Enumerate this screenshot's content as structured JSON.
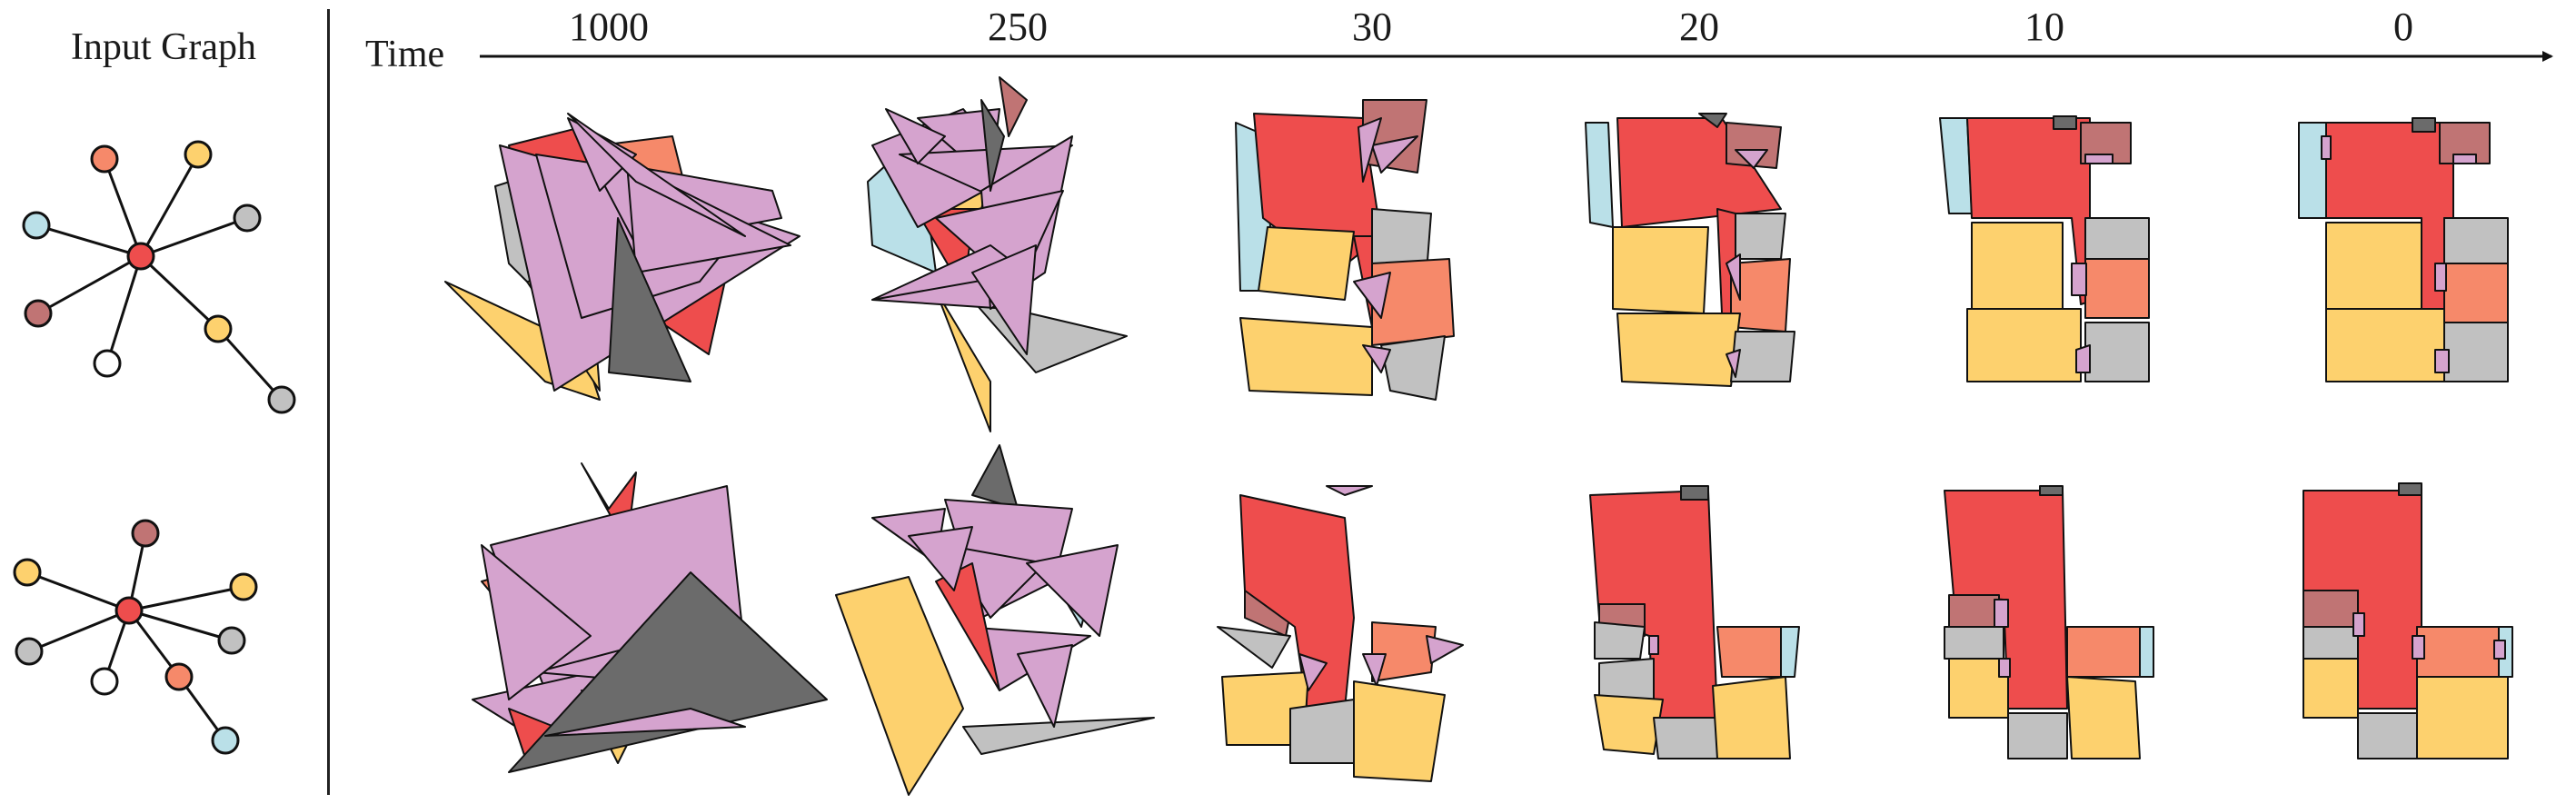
{
  "labels": {
    "input_graph": "Input Graph",
    "time": "Time"
  },
  "timesteps": [
    "1000",
    "250",
    "30",
    "20",
    "10",
    "0"
  ],
  "colors": {
    "living": "#ee4d4d",
    "bedroom": "#fdd16e",
    "kitchen": "#f6896a",
    "bathroom": "#c1c1c1",
    "balcony": "#bae0e8",
    "storage": "#c07474",
    "door": "#d5a3ce",
    "entrance": "#6b6b6b",
    "other": "#ffffff"
  },
  "graphs": [
    {
      "center": "living",
      "nodes": [
        "kitchen",
        "bedroom",
        "balcony",
        "bathroom",
        "storage",
        "other",
        "bedroom",
        "bathroom"
      ]
    },
    {
      "center": "living",
      "nodes": [
        "storage",
        "bedroom",
        "bedroom",
        "bathroom",
        "bathroom",
        "other",
        "kitchen",
        "balcony"
      ]
    }
  ]
}
